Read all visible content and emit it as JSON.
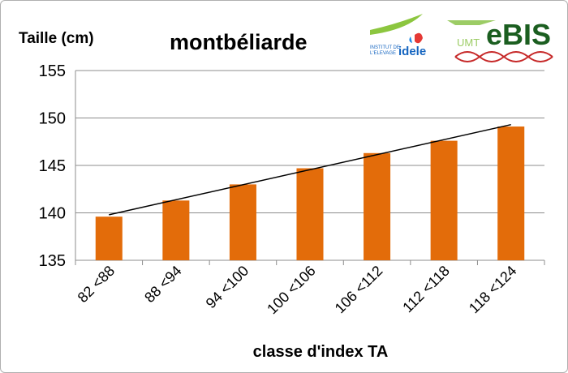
{
  "chart_data": {
    "type": "bar",
    "title": "montbéliarde",
    "ylabel": "Taille (cm)",
    "xlabel": "classe d'index TA",
    "categories": [
      "82 <88",
      "88 <94",
      "94 <100",
      "100 <106",
      "106 <112",
      "112 <118",
      "118 <124"
    ],
    "values": [
      139.6,
      141.3,
      143.0,
      144.7,
      146.3,
      147.6,
      149.1
    ],
    "trendline": {
      "type": "linear",
      "start": 139.8,
      "end": 149.3
    },
    "ylim": [
      135,
      155
    ],
    "yticks": [
      135,
      140,
      145,
      150,
      155
    ],
    "grid": true,
    "bar_color": "#e36c0a"
  },
  "logos": {
    "idele_top": "INSTITUT DE",
    "idele_bottom": "L'ELEVAGE",
    "idele_name": "idele",
    "umt": "UMT",
    "ebis": "eBIS"
  }
}
